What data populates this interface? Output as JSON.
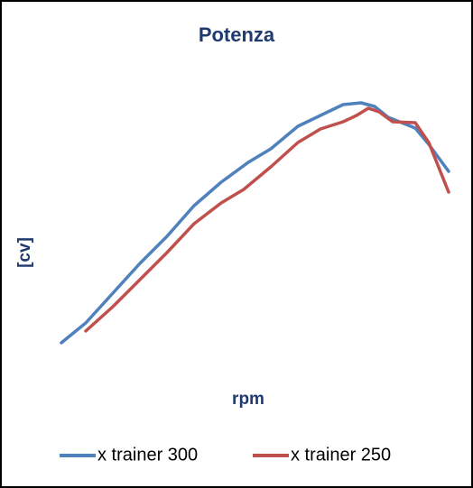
{
  "chart_data": {
    "type": "line",
    "title": "Potenza",
    "xlabel": "rpm",
    "ylabel": "[cv]",
    "xlim": [
      0,
      440
    ],
    "ylim": [
      0,
      300
    ],
    "legend": "bottom",
    "series": [
      {
        "name": "x trainer 300",
        "color": "#4f81bd",
        "x": [
          8,
          35,
          65,
          95,
          125,
          155,
          185,
          215,
          240,
          270,
          295,
          320,
          340,
          355,
          370,
          400,
          415,
          437
        ],
        "values": [
          20,
          42,
          75,
          108,
          138,
          172,
          198,
          220,
          235,
          260,
          272,
          284,
          286,
          282,
          270,
          258,
          240,
          210
        ]
      },
      {
        "name": "x trainer 250",
        "color": "#c0504d",
        "x": [
          35,
          65,
          95,
          125,
          155,
          185,
          210,
          240,
          270,
          295,
          320,
          335,
          348,
          360,
          375,
          400,
          415,
          437
        ],
        "values": [
          33,
          60,
          90,
          120,
          152,
          175,
          190,
          215,
          242,
          257,
          265,
          272,
          280,
          276,
          265,
          264,
          242,
          187
        ]
      }
    ]
  }
}
